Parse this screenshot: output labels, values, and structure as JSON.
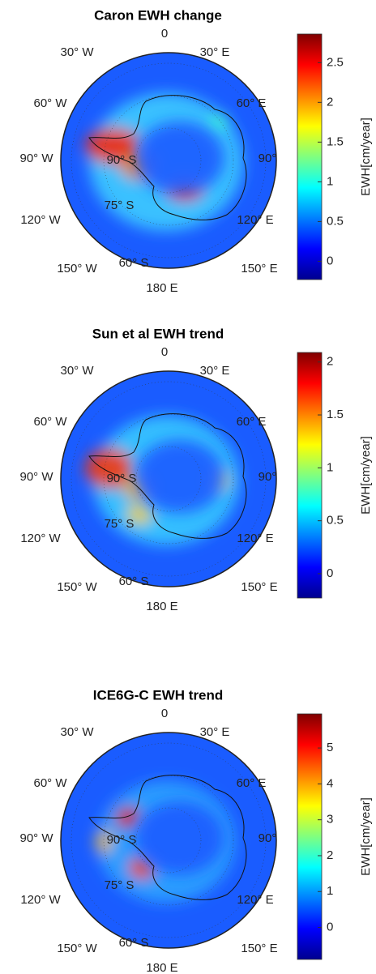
{
  "chart_data": [
    {
      "type": "map",
      "title": "Caron EWH change",
      "graticule_labels": [
        "0",
        "30° W",
        "30° E",
        "60° W",
        "60° E",
        "90° W",
        "90°",
        "120° W",
        "120° E",
        "150° W",
        "150° E",
        "180 E",
        "90° S",
        "75° S",
        "60° S"
      ],
      "colorbar": {
        "label": "EWH[cm/year]",
        "clim": [
          -0.23,
          2.86
        ],
        "ticks": [
          0,
          0.5,
          1,
          1.5,
          2,
          2.5
        ]
      }
    },
    {
      "type": "map",
      "title": "Sun et al EWH trend",
      "graticule_labels": [
        "0",
        "30° W",
        "30° E",
        "60° W",
        "60° E",
        "90° W",
        "90°",
        "120° W",
        "120° E",
        "150° W",
        "150° E",
        "180 E",
        "90° S",
        "75° S",
        "60° S"
      ],
      "colorbar": {
        "label": "EWH[cm/year]",
        "clim": [
          -0.23,
          2.09
        ],
        "ticks": [
          0,
          0.5,
          1,
          1.5,
          2
        ]
      }
    },
    {
      "type": "map",
      "title": "ICE6G-C EWH trend",
      "graticule_labels": [
        "0",
        "30° W",
        "30° E",
        "60° W",
        "60° E",
        "90° W",
        "90°",
        "120° W",
        "120° E",
        "150° W",
        "150° E",
        "180 E",
        "90° S",
        "75° S",
        "60° S"
      ],
      "colorbar": {
        "label": "EWH[cm/year]",
        "clim": [
          -0.89,
          5.95
        ],
        "ticks": [
          0,
          1,
          2,
          3,
          4,
          5
        ]
      }
    }
  ]
}
